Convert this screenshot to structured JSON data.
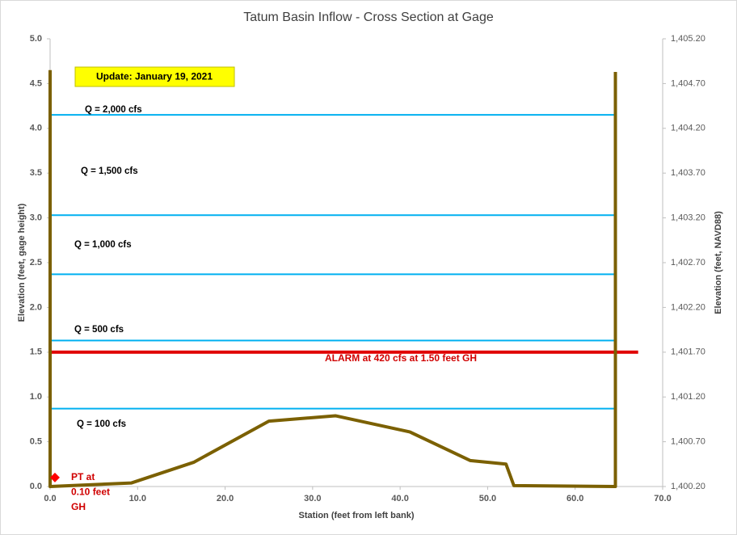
{
  "chart_data": {
    "type": "line",
    "title": "Tatum Basin Inflow - Cross Section at Gage",
    "x_label": "Station (feet from left bank)",
    "y_label": "Elevation (feet, gage height)",
    "y2_label": "Elevation (feet, NAVD88)",
    "annotation": "Update: January 19, 2021",
    "xlim": [
      0,
      70
    ],
    "xticks": [
      {
        "value": 0,
        "label": "0.0"
      },
      {
        "value": 10,
        "label": "10.0"
      },
      {
        "value": 20,
        "label": "20.0"
      },
      {
        "value": 30,
        "label": "30.0"
      },
      {
        "value": 40,
        "label": "40.0"
      },
      {
        "value": 50,
        "label": "50.0"
      },
      {
        "value": 60,
        "label": "60.0"
      },
      {
        "value": 70,
        "label": "70.0"
      }
    ],
    "ylim": [
      0,
      5
    ],
    "yticks": [
      {
        "value": 0,
        "label": "0.0"
      },
      0.5,
      {
        "value": 1,
        "label": "1.0"
      },
      1.5,
      {
        "value": 2,
        "label": "2.0"
      },
      2.5,
      {
        "value": 3,
        "label": "3.0"
      },
      3.5,
      {
        "value": 4,
        "label": "4.0"
      },
      4.5,
      {
        "value": 5,
        "label": "5.0"
      }
    ],
    "y2lim": [
      1400.2,
      1405.2
    ],
    "y2ticks": [
      {
        "value": 1400.2,
        "label": "1,400.20"
      },
      {
        "value": 1400.7,
        "label": "1,400.70"
      },
      {
        "value": 1401.2,
        "label": "1,401.20"
      },
      {
        "value": 1401.7,
        "label": "1,401.70"
      },
      {
        "value": 1402.2,
        "label": "1,402.20"
      },
      {
        "value": 1402.7,
        "label": "1,402.70"
      },
      {
        "value": 1403.2,
        "label": "1,403.20"
      },
      {
        "value": 1403.7,
        "label": "1,403.70"
      },
      {
        "value": 1404.2,
        "label": "1,404.20"
      },
      {
        "value": 1404.7,
        "label": "1,404.70"
      },
      {
        "value": 1405.2,
        "label": "1,405.20"
      }
    ],
    "series": [
      {
        "color": "#7b6000",
        "x": [
          0,
          0,
          9.3,
          16.4,
          25,
          32.6,
          41.1,
          48,
          52.1,
          53,
          64.6,
          64.6
        ],
        "values": [
          4.65,
          0,
          0.04,
          0.27,
          0.73,
          0.79,
          0.61,
          0.29,
          0.25,
          0.01,
          0,
          4.63
        ]
      }
    ],
    "levels": [
      {
        "label": "Q = 2,000  cfs",
        "value": 4.15
      },
      {
        "label": "Q = 1,500  cfs",
        "value": 3.03
      },
      {
        "label": "Q = 1,000  cfs",
        "value": 2.37
      },
      {
        "label": "Q = 500  cfs",
        "value": 1.63
      },
      {
        "label": "Q = 100  cfs",
        "value": 0.87
      }
    ],
    "level_color": "#00b0f0",
    "alarm": {
      "label": "ALARM at 420  cfs at 1.50  feet GH",
      "value": 1.5,
      "x": [
        0,
        67.2
      ],
      "color": "#e00000"
    },
    "sensor": {
      "label": [
        "PT at",
        "0.10 feet",
        "GH"
      ],
      "x": 0.55,
      "value": 0.1,
      "color": "#ff0000"
    }
  }
}
